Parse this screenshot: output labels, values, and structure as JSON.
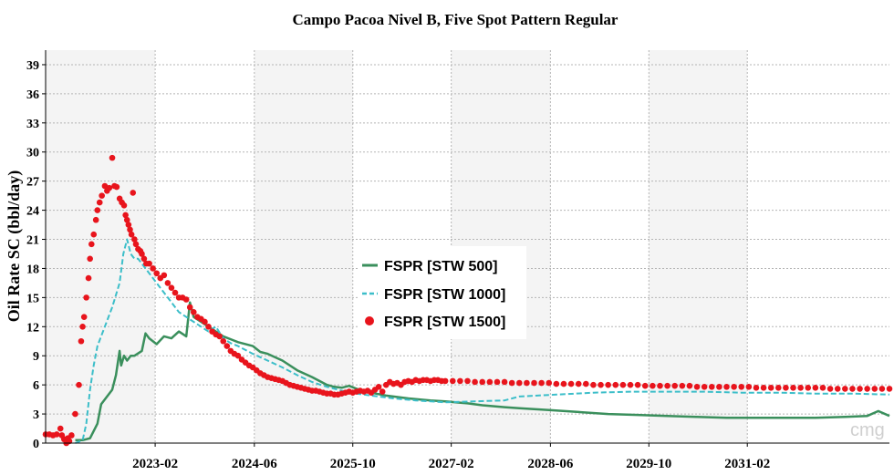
{
  "chart_data": {
    "type": "line",
    "title": "Campo Pacoa Nivel B, Five Spot Pattern Regular",
    "xlabel": "",
    "ylabel": "Oil Rate SC (bbl/day)",
    "ylim": [
      0,
      40.5
    ],
    "yticks": [
      0,
      3,
      6,
      9,
      12,
      15,
      18,
      21,
      24,
      27,
      30,
      33,
      36,
      39
    ],
    "xlim": [
      2021.6,
      2033.0
    ],
    "xticks": [
      {
        "label": "2023-02",
        "value": 2023.08
      },
      {
        "label": "2024-06",
        "value": 2024.42
      },
      {
        "label": "2025-10",
        "value": 2025.75
      },
      {
        "label": "2027-02",
        "value": 2027.08
      },
      {
        "label": "2028-06",
        "value": 2028.42
      },
      {
        "label": "2029-10",
        "value": 2029.75
      },
      {
        "label": "2031-02",
        "value": 2031.08
      }
    ],
    "grid": true,
    "legend_position": "center",
    "watermark": "cmg",
    "series": [
      {
        "name": "FSPR [STW 500]",
        "style": "solid",
        "color": "#3a8f5c",
        "x": [
          2022.0,
          2022.1,
          2022.2,
          2022.3,
          2022.35,
          2022.4,
          2022.5,
          2022.55,
          2022.6,
          2022.62,
          2022.66,
          2022.7,
          2022.75,
          2022.8,
          2022.9,
          2022.95,
          2023.0,
          2023.1,
          2023.2,
          2023.3,
          2023.4,
          2023.5,
          2023.55,
          2023.6,
          2023.7,
          2023.8,
          2023.9,
          2024.0,
          2024.2,
          2024.4,
          2024.5,
          2024.6,
          2024.8,
          2025.0,
          2025.2,
          2025.4,
          2025.5,
          2025.6,
          2025.7,
          2025.8,
          2026.0,
          2026.2,
          2026.5,
          2026.8,
          2027.0,
          2027.3,
          2027.5,
          2027.8,
          2028.0,
          2028.4,
          2028.8,
          2029.2,
          2029.6,
          2030.0,
          2030.4,
          2030.8,
          2031.2,
          2031.6,
          2032.0,
          2032.4,
          2032.7,
          2032.85,
          2033.0
        ],
        "values": [
          0.3,
          0.3,
          0.5,
          2.0,
          4.0,
          4.5,
          5.5,
          7.0,
          9.5,
          8.0,
          9.0,
          8.5,
          9.0,
          9.0,
          9.5,
          11.3,
          10.8,
          10.2,
          11.0,
          10.8,
          11.5,
          11.0,
          14.5,
          13.0,
          12.5,
          12.0,
          11.5,
          11.0,
          10.4,
          10.0,
          9.4,
          9.2,
          8.5,
          7.5,
          6.8,
          6.0,
          5.8,
          5.7,
          5.9,
          5.6,
          5.2,
          4.9,
          4.6,
          4.4,
          4.3,
          4.1,
          3.9,
          3.7,
          3.6,
          3.4,
          3.2,
          3.0,
          2.9,
          2.8,
          2.7,
          2.6,
          2.6,
          2.6,
          2.6,
          2.7,
          2.8,
          3.3,
          2.8
        ]
      },
      {
        "name": "FSPR [STW 1000]",
        "style": "dashed",
        "color": "#3cbec9",
        "x": [
          2022.0,
          2022.1,
          2022.15,
          2022.2,
          2022.25,
          2022.3,
          2022.4,
          2022.5,
          2022.6,
          2022.65,
          2022.7,
          2022.75,
          2022.8,
          2022.85,
          2022.9,
          2023.0,
          2023.2,
          2023.4,
          2023.6,
          2023.8,
          2023.9,
          2024.0,
          2024.1,
          2024.2,
          2024.4,
          2024.6,
          2024.8,
          2025.0,
          2025.2,
          2025.4,
          2025.6,
          2025.8,
          2026.0,
          2026.3,
          2026.6,
          2027.0,
          2027.4,
          2027.8,
          2028.0,
          2028.5,
          2029.0,
          2029.5,
          2030.0,
          2030.5,
          2031.0,
          2031.5,
          2032.0,
          2032.5,
          2033.0
        ],
        "values": [
          0.0,
          0.3,
          2.0,
          5.5,
          8.0,
          10.0,
          12.0,
          14.0,
          16.5,
          19.5,
          21.0,
          19.5,
          19.0,
          19.0,
          18.5,
          17.5,
          15.5,
          13.5,
          12.5,
          11.5,
          12.0,
          10.8,
          10.3,
          10.0,
          9.2,
          8.5,
          7.8,
          7.0,
          6.3,
          5.8,
          5.4,
          5.1,
          4.9,
          4.6,
          4.4,
          4.2,
          4.3,
          4.4,
          4.8,
          5.0,
          5.2,
          5.3,
          5.3,
          5.3,
          5.2,
          5.2,
          5.1,
          5.1,
          5.0
        ]
      },
      {
        "name": "FSPR [STW 1500]",
        "style": "dots",
        "color": "#e8141c",
        "x": [
          2021.6,
          2021.65,
          2021.7,
          2021.75,
          2021.8,
          2021.82,
          2021.85,
          2021.88,
          2021.9,
          2021.92,
          2021.95,
          2022.0,
          2022.05,
          2022.08,
          2022.1,
          2022.12,
          2022.15,
          2022.18,
          2022.2,
          2022.22,
          2022.25,
          2022.28,
          2022.3,
          2022.33,
          2022.36,
          2022.4,
          2022.43,
          2022.46,
          2022.5,
          2022.53,
          2022.56,
          2022.6,
          2022.63,
          2022.66,
          2022.68,
          2022.7,
          2022.72,
          2022.74,
          2022.76,
          2022.78,
          2022.8,
          2022.82,
          2022.85,
          2022.88,
          2022.9,
          2022.93,
          2022.96,
          2023.0,
          2023.05,
          2023.1,
          2023.15,
          2023.2,
          2023.25,
          2023.3,
          2023.35,
          2023.4,
          2023.45,
          2023.5,
          2023.55,
          2023.6,
          2023.65,
          2023.7,
          2023.75,
          2023.8,
          2023.85,
          2023.9,
          2023.95,
          2024.0,
          2024.05,
          2024.1,
          2024.15,
          2024.2,
          2024.25,
          2024.3,
          2024.35,
          2024.4,
          2024.45,
          2024.5,
          2024.55,
          2024.6,
          2024.65,
          2024.7,
          2024.75,
          2024.8,
          2024.85,
          2024.9,
          2024.95,
          2025.0,
          2025.05,
          2025.1,
          2025.15,
          2025.2,
          2025.25,
          2025.3,
          2025.35,
          2025.4,
          2025.45,
          2025.5,
          2025.55,
          2025.6,
          2025.65,
          2025.7,
          2025.75,
          2025.8,
          2025.85,
          2025.9,
          2025.95,
          2026.0,
          2026.05,
          2026.1,
          2026.15,
          2026.2,
          2026.25,
          2026.3,
          2026.35,
          2026.4,
          2026.45,
          2026.5,
          2026.55,
          2026.6,
          2026.65,
          2026.7,
          2026.75,
          2026.8,
          2026.85,
          2026.9,
          2026.95,
          2027.0,
          2027.1,
          2027.2,
          2027.3,
          2027.4,
          2027.5,
          2027.6,
          2027.7,
          2027.8,
          2027.9,
          2028.0,
          2028.1,
          2028.2,
          2028.3,
          2028.4,
          2028.5,
          2028.6,
          2028.7,
          2028.8,
          2028.9,
          2029.0,
          2029.1,
          2029.2,
          2029.3,
          2029.4,
          2029.5,
          2029.6,
          2029.7,
          2029.8,
          2029.9,
          2030.0,
          2030.1,
          2030.2,
          2030.3,
          2030.4,
          2030.5,
          2030.6,
          2030.7,
          2030.8,
          2030.9,
          2031.0,
          2031.1,
          2031.2,
          2031.3,
          2031.4,
          2031.5,
          2031.6,
          2031.7,
          2031.8,
          2031.9,
          2032.0,
          2032.1,
          2032.2,
          2032.3,
          2032.4,
          2032.5,
          2032.6,
          2032.7,
          2032.8,
          2032.9,
          2033.0
        ],
        "values": [
          0.9,
          0.9,
          0.8,
          0.9,
          1.5,
          0.8,
          0.4,
          0.0,
          0.5,
          0.2,
          0.8,
          3.0,
          6.0,
          10.5,
          12.0,
          13.0,
          15.0,
          17.0,
          19.0,
          20.5,
          21.5,
          23.0,
          24.0,
          24.8,
          25.5,
          26.5,
          26.0,
          26.3,
          29.4,
          26.5,
          26.4,
          25.2,
          24.8,
          24.5,
          23.5,
          23.0,
          22.5,
          22.0,
          21.5,
          25.8,
          21.0,
          20.5,
          20.0,
          19.8,
          19.5,
          19.0,
          18.5,
          18.5,
          18.0,
          17.5,
          17.0,
          17.3,
          16.5,
          16.0,
          15.5,
          15.0,
          15.0,
          14.8,
          14.0,
          13.5,
          13.0,
          12.8,
          12.5,
          12.0,
          11.5,
          11.2,
          11.0,
          10.5,
          10.0,
          9.5,
          9.2,
          9.0,
          8.6,
          8.3,
          8.0,
          7.8,
          7.5,
          7.2,
          7.0,
          6.8,
          6.7,
          6.6,
          6.5,
          6.4,
          6.2,
          6.0,
          5.9,
          5.8,
          5.7,
          5.6,
          5.5,
          5.4,
          5.4,
          5.3,
          5.2,
          5.1,
          5.1,
          5.0,
          5.0,
          5.1,
          5.2,
          5.3,
          5.2,
          5.3,
          5.4,
          5.3,
          5.4,
          5.2,
          5.5,
          5.8,
          5.3,
          6.0,
          6.3,
          6.1,
          6.2,
          6.0,
          6.3,
          6.4,
          6.3,
          6.5,
          6.4,
          6.5,
          6.5,
          6.4,
          6.5,
          6.5,
          6.4,
          6.4,
          6.4,
          6.4,
          6.4,
          6.3,
          6.3,
          6.3,
          6.3,
          6.3,
          6.2,
          6.2,
          6.2,
          6.2,
          6.2,
          6.2,
          6.1,
          6.1,
          6.1,
          6.1,
          6.1,
          6.0,
          6.0,
          6.0,
          6.0,
          6.0,
          6.0,
          6.0,
          5.9,
          5.9,
          5.9,
          5.9,
          5.9,
          5.9,
          5.9,
          5.8,
          5.8,
          5.8,
          5.8,
          5.8,
          5.8,
          5.8,
          5.8,
          5.7,
          5.7,
          5.7,
          5.7,
          5.7,
          5.7,
          5.7,
          5.7,
          5.7,
          5.7,
          5.6,
          5.6,
          5.6,
          5.6,
          5.6,
          5.6,
          5.6,
          5.6,
          5.6
        ]
      }
    ]
  }
}
